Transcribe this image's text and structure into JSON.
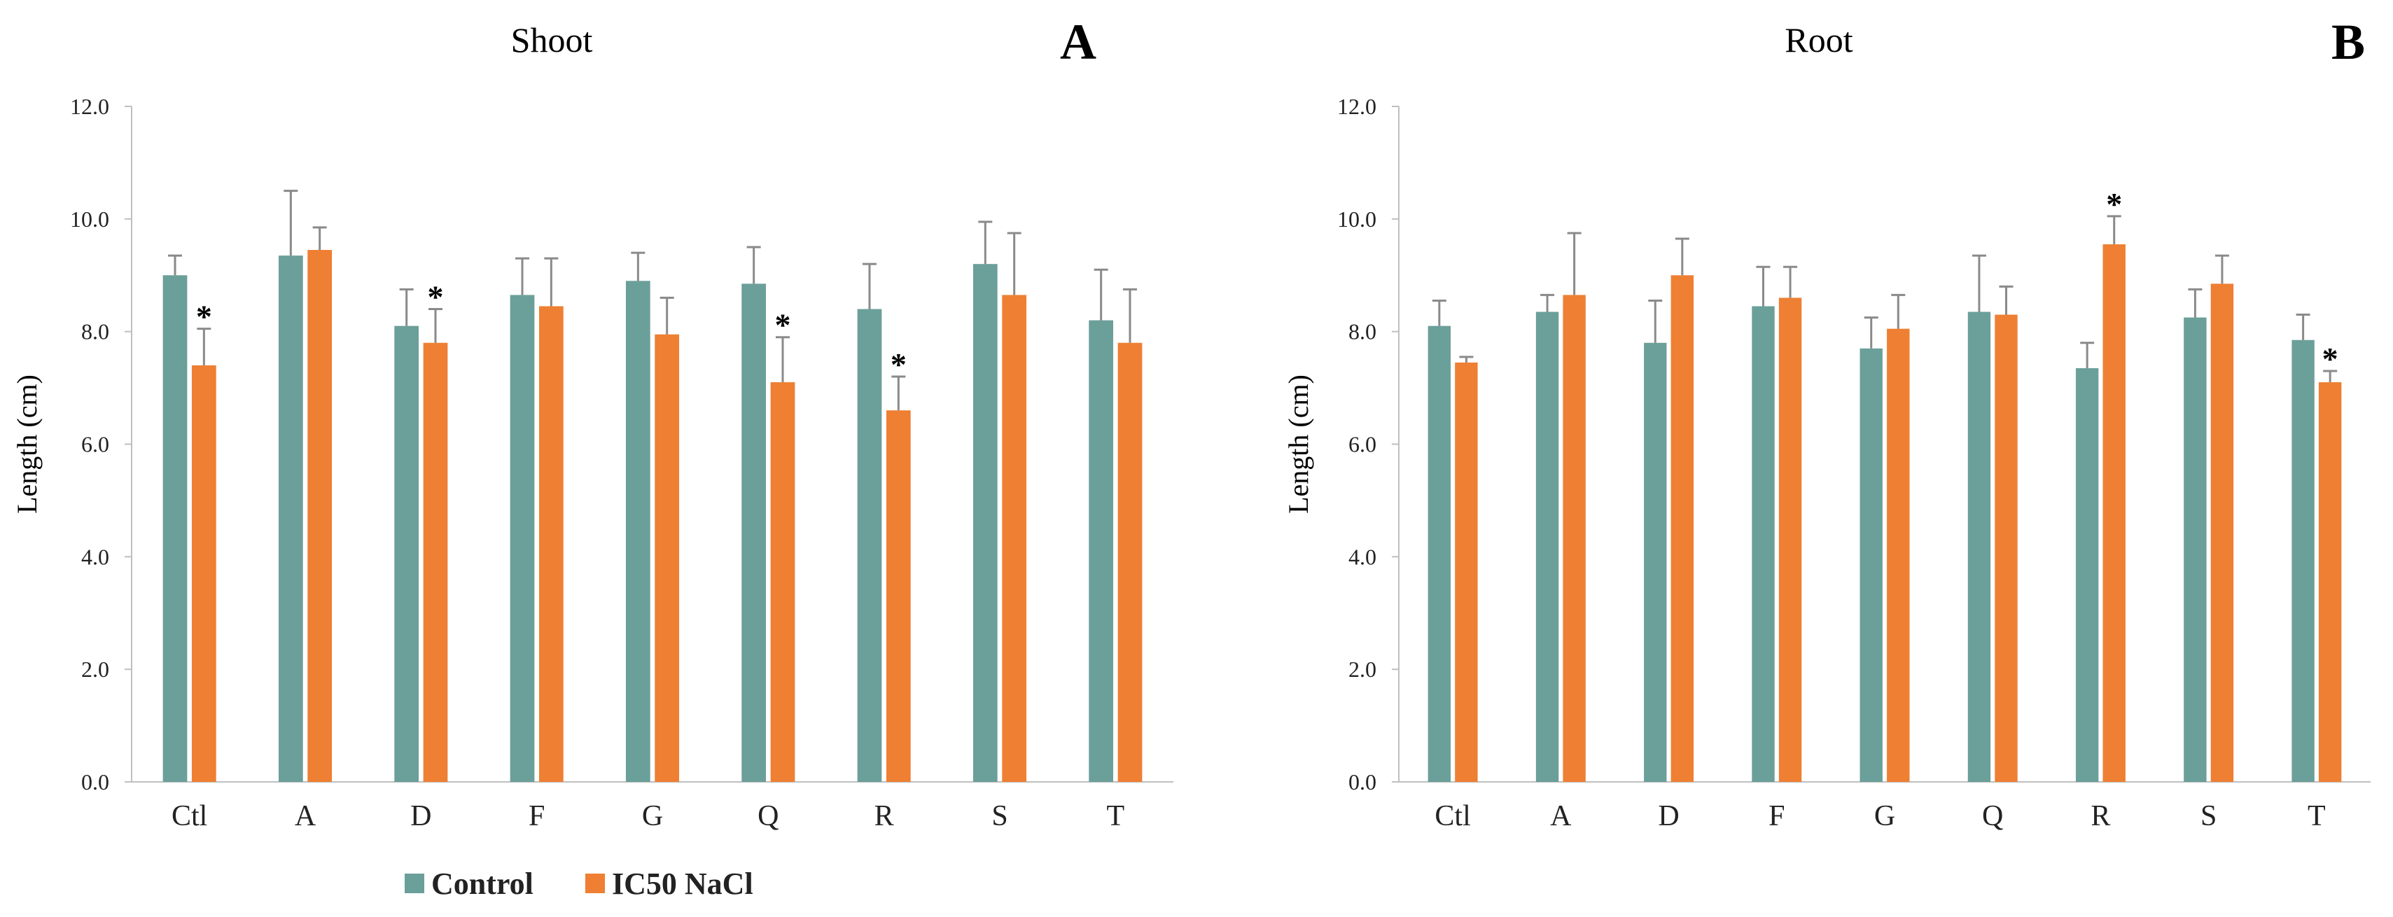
{
  "colors": {
    "control": "#6b9f9a",
    "treatment": "#ee7f33",
    "error_bar": "#8a8a8a",
    "axis": "#bfbfbf"
  },
  "legend": {
    "items": [
      {
        "label": "Control",
        "color": "#6b9f9a"
      },
      {
        "label": "IC50 NaCl",
        "color": "#ee7f33"
      }
    ],
    "placement": "bottom-left"
  },
  "chart_data": [
    {
      "type": "bar",
      "title": "Shoot",
      "panel": "A",
      "ylabel": "Length (cm)",
      "xlabel": "",
      "ylim": [
        0,
        12
      ],
      "yticks": [
        "0.0",
        "2.0",
        "4.0",
        "6.0",
        "8.0",
        "10.0",
        "12.0"
      ],
      "grid": false,
      "categories": [
        "Ctl",
        "A",
        "D",
        "F",
        "G",
        "Q",
        "R",
        "S",
        "T"
      ],
      "series": [
        {
          "name": "Control",
          "values": [
            9.0,
            9.35,
            8.1,
            8.65,
            8.9,
            8.85,
            8.4,
            9.2,
            8.2
          ],
          "errors": [
            0.35,
            1.15,
            0.65,
            0.65,
            0.5,
            0.65,
            0.8,
            0.75,
            0.9
          ],
          "significant": [
            false,
            false,
            false,
            false,
            false,
            false,
            false,
            false,
            false
          ]
        },
        {
          "name": "IC50 NaCl",
          "values": [
            7.4,
            9.45,
            7.8,
            8.45,
            7.95,
            7.1,
            6.6,
            8.65,
            7.8
          ],
          "errors": [
            0.65,
            0.4,
            0.6,
            0.85,
            0.65,
            0.8,
            0.6,
            1.1,
            0.95
          ],
          "significant": [
            true,
            false,
            true,
            false,
            false,
            true,
            true,
            false,
            false
          ]
        }
      ]
    },
    {
      "type": "bar",
      "title": "Root",
      "panel": "B",
      "ylabel": "Length (cm)",
      "xlabel": "",
      "ylim": [
        0,
        12
      ],
      "yticks": [
        "0.0",
        "2.0",
        "4.0",
        "6.0",
        "8.0",
        "10.0",
        "12.0"
      ],
      "grid": false,
      "categories": [
        "Ctl",
        "A",
        "D",
        "F",
        "G",
        "Q",
        "R",
        "S",
        "T"
      ],
      "series": [
        {
          "name": "Control",
          "values": [
            8.1,
            8.35,
            7.8,
            8.45,
            7.7,
            8.35,
            7.35,
            8.25,
            7.85
          ],
          "errors": [
            0.45,
            0.3,
            0.75,
            0.7,
            0.55,
            1.0,
            0.45,
            0.5,
            0.45
          ],
          "significant": [
            false,
            false,
            false,
            false,
            false,
            false,
            false,
            false,
            false
          ]
        },
        {
          "name": "IC50 NaCl",
          "values": [
            7.45,
            8.65,
            9.0,
            8.6,
            8.05,
            8.3,
            9.55,
            8.85,
            7.1
          ],
          "errors": [
            0.1,
            1.1,
            0.65,
            0.55,
            0.6,
            0.5,
            0.5,
            0.5,
            0.2
          ],
          "significant": [
            false,
            false,
            false,
            false,
            false,
            false,
            true,
            false,
            true
          ]
        }
      ]
    }
  ]
}
